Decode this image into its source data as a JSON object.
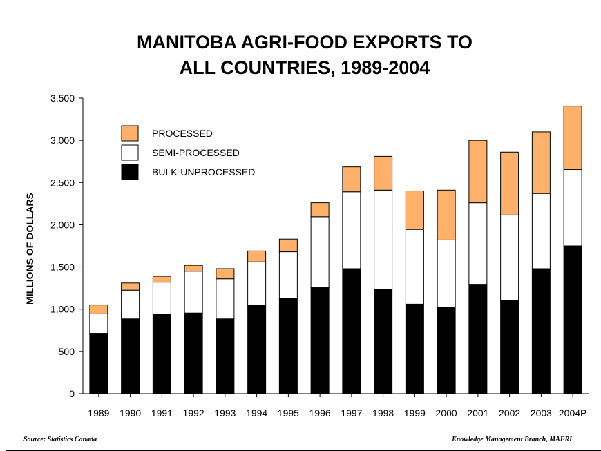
{
  "chart_data": {
    "type": "bar",
    "stacked": true,
    "title_lines": [
      "MANITOBA AGRI-FOOD EXPORTS TO",
      "ALL COUNTRIES, 1989-2004"
    ],
    "ylabel": "MILLIONS OF DOLLARS",
    "xlabel": "",
    "ylim": [
      0,
      3500
    ],
    "yticks": [
      0,
      500,
      1000,
      1500,
      2000,
      2500,
      3000,
      3500
    ],
    "ytick_labels": [
      "0",
      "500",
      "1,000",
      "1,500",
      "2,000",
      "2,500",
      "3,000",
      "3,500"
    ],
    "categories": [
      "1989",
      "1990",
      "1991",
      "1992",
      "1993",
      "1994",
      "1995",
      "1996",
      "1997",
      "1998",
      "1999",
      "2000",
      "2001",
      "2002",
      "2003",
      "2004P"
    ],
    "series": [
      {
        "name": "BULK-UNPROCESSED",
        "color": "#000000",
        "values": [
          715,
          885,
          940,
          955,
          885,
          1045,
          1125,
          1255,
          1480,
          1235,
          1060,
          1025,
          1295,
          1100,
          1480,
          1750
        ]
      },
      {
        "name": "SEMI-PROCESSED",
        "color": "#ffffff",
        "values": [
          230,
          340,
          380,
          495,
          475,
          515,
          555,
          840,
          910,
          1175,
          885,
          795,
          965,
          1015,
          890,
          905
        ]
      },
      {
        "name": "PROCESSED",
        "color": "#ffb06b",
        "values": [
          105,
          85,
          70,
          70,
          120,
          130,
          150,
          165,
          295,
          400,
          455,
          590,
          740,
          745,
          730,
          750
        ]
      }
    ],
    "legend_order": [
      "PROCESSED",
      "SEMI-PROCESSED",
      "BULK-UNPROCESSED"
    ],
    "legend_position": "top-left",
    "grid": false
  },
  "footer": {
    "source": "Source: Statistics Canada",
    "credit": "Knowledge Management Branch,  MAFRI"
  }
}
